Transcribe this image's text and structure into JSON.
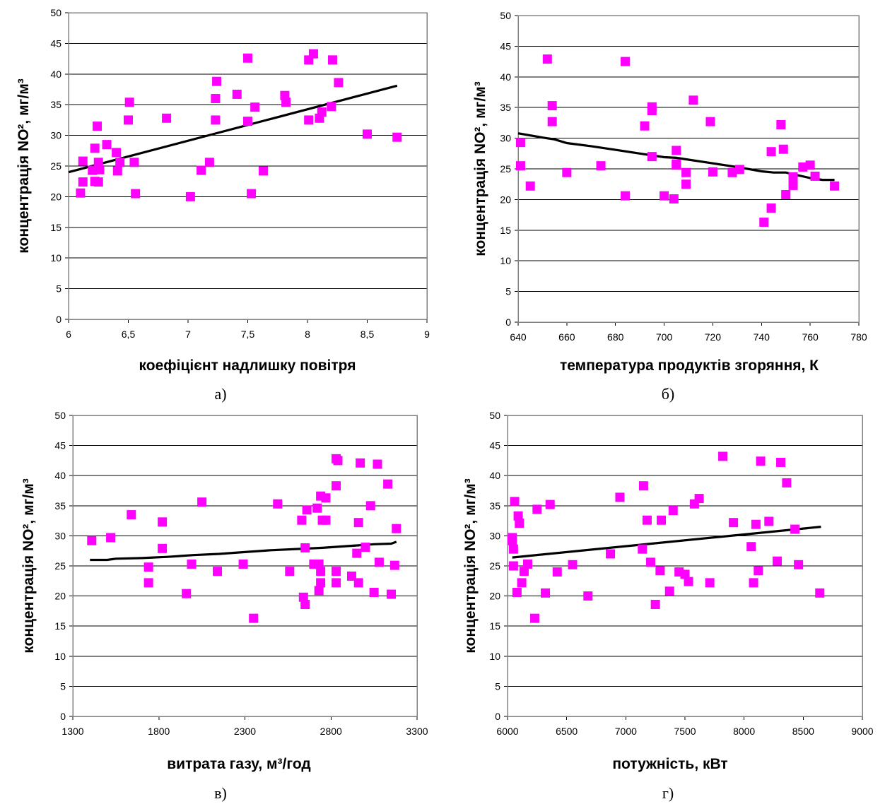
{
  "chart_data": [
    {
      "type": "scatter",
      "caption": "а)",
      "xlabel": "коефіцієнт надлишку повітря",
      "ylabel": "концентрація NO²,  мг/м³",
      "xlim": [
        6,
        9
      ],
      "ylim": [
        0,
        50
      ],
      "xticks": [
        "6",
        "6,5",
        "7",
        "7,5",
        "8",
        "8,5",
        "9"
      ],
      "yticks": [
        "0",
        "5",
        "10",
        "15",
        "20",
        "25",
        "30",
        "35",
        "40",
        "45",
        "50"
      ],
      "grid": "horizontal",
      "marker_color": "#ff00ff",
      "trend_color": "#000000",
      "points": [
        [
          6.1,
          20.6
        ],
        [
          6.12,
          25.8
        ],
        [
          6.12,
          22.4
        ],
        [
          6.2,
          24.3
        ],
        [
          6.22,
          22.5
        ],
        [
          6.22,
          27.9
        ],
        [
          6.24,
          31.5
        ],
        [
          6.25,
          25.6
        ],
        [
          6.25,
          22.4
        ],
        [
          6.26,
          24.4
        ],
        [
          6.32,
          28.5
        ],
        [
          6.4,
          27.2
        ],
        [
          6.41,
          24.2
        ],
        [
          6.43,
          25.6
        ],
        [
          6.5,
          32.5
        ],
        [
          6.51,
          35.4
        ],
        [
          6.55,
          25.6
        ],
        [
          6.56,
          20.5
        ],
        [
          6.82,
          32.8
        ],
        [
          7.02,
          20.0
        ],
        [
          7.11,
          24.3
        ],
        [
          7.18,
          25.6
        ],
        [
          7.23,
          36.0
        ],
        [
          7.23,
          32.5
        ],
        [
          7.24,
          38.8
        ],
        [
          7.41,
          36.7
        ],
        [
          7.5,
          42.6
        ],
        [
          7.5,
          32.3
        ],
        [
          7.53,
          20.5
        ],
        [
          7.56,
          34.6
        ],
        [
          7.63,
          24.2
        ],
        [
          7.81,
          36.5
        ],
        [
          7.82,
          35.4
        ],
        [
          8.01,
          32.5
        ],
        [
          8.01,
          42.3
        ],
        [
          8.05,
          43.3
        ],
        [
          8.1,
          32.8
        ],
        [
          8.12,
          33.8
        ],
        [
          8.2,
          34.7
        ],
        [
          8.21,
          42.3
        ],
        [
          8.26,
          38.6
        ],
        [
          8.5,
          30.2
        ],
        [
          8.75,
          29.7
        ]
      ],
      "trend": [
        [
          6,
          24.0
        ],
        [
          8.75,
          38.1
        ]
      ]
    },
    {
      "type": "scatter",
      "caption": "б)",
      "xlabel": "температура продуктів згоряння, К",
      "ylabel": "концентрація NO²,  мг/м³",
      "xlim": [
        640,
        780
      ],
      "ylim": [
        0,
        50
      ],
      "xticks": [
        "640",
        "660",
        "680",
        "700",
        "720",
        "740",
        "760",
        "780"
      ],
      "yticks": [
        "0",
        "5",
        "10",
        "15",
        "20",
        "25",
        "30",
        "35",
        "40",
        "45",
        "50"
      ],
      "grid": "horizontal",
      "marker_color": "#ff00ff",
      "trend_color": "#000000",
      "points": [
        [
          641,
          29.3
        ],
        [
          641,
          25.5
        ],
        [
          645,
          22.2
        ],
        [
          652,
          42.9
        ],
        [
          654,
          35.3
        ],
        [
          654,
          32.7
        ],
        [
          660,
          24.4
        ],
        [
          674,
          25.5
        ],
        [
          684,
          42.5
        ],
        [
          684,
          20.6
        ],
        [
          692,
          32.0
        ],
        [
          695,
          35.1
        ],
        [
          695,
          34.5
        ],
        [
          695,
          27.0
        ],
        [
          700,
          20.6
        ],
        [
          704,
          20.1
        ],
        [
          705,
          25.6
        ],
        [
          705,
          25.8
        ],
        [
          705,
          28.0
        ],
        [
          709,
          24.4
        ],
        [
          709,
          22.5
        ],
        [
          712,
          36.2
        ],
        [
          719,
          32.7
        ],
        [
          720,
          24.5
        ],
        [
          728,
          24.4
        ],
        [
          731,
          24.9
        ],
        [
          741,
          16.3
        ],
        [
          744,
          18.6
        ],
        [
          744,
          27.8
        ],
        [
          748,
          32.2
        ],
        [
          749,
          28.2
        ],
        [
          750,
          20.8
        ],
        [
          753,
          23.7
        ],
        [
          753,
          22.3
        ],
        [
          757,
          25.3
        ],
        [
          760,
          25.6
        ],
        [
          762,
          23.8
        ],
        [
          770,
          22.2
        ]
      ],
      "trend": [
        [
          640,
          30.8
        ],
        [
          650,
          30.1
        ],
        [
          655,
          29.8
        ],
        [
          660,
          29.2
        ],
        [
          670,
          28.7
        ],
        [
          680,
          28.1
        ],
        [
          690,
          27.5
        ],
        [
          700,
          26.9
        ],
        [
          705,
          26.8
        ],
        [
          710,
          26.5
        ],
        [
          720,
          25.9
        ],
        [
          730,
          25.3
        ],
        [
          740,
          24.6
        ],
        [
          745,
          24.4
        ],
        [
          750,
          24.4
        ],
        [
          760,
          23.5
        ],
        [
          765,
          23.2
        ],
        [
          770,
          23.2
        ]
      ]
    },
    {
      "type": "scatter",
      "caption": "в)",
      "xlabel": "витрата газу, м³/год",
      "ylabel": "концентрація NO²,  мг/м³",
      "xlim": [
        1300,
        3300
      ],
      "ylim": [
        0,
        50
      ],
      "xticks": [
        "1300",
        "1800",
        "2300",
        "2800",
        "3300"
      ],
      "yticks": [
        "0",
        "5",
        "10",
        "15",
        "20",
        "25",
        "30",
        "35",
        "40",
        "45",
        "50"
      ],
      "grid": "horizontal",
      "marker_color": "#ff00ff",
      "trend_color": "#000000",
      "points": [
        [
          1410,
          29.2
        ],
        [
          1520,
          29.7
        ],
        [
          1640,
          33.5
        ],
        [
          1740,
          24.8
        ],
        [
          1740,
          22.2
        ],
        [
          1820,
          32.3
        ],
        [
          1820,
          27.9
        ],
        [
          1960,
          20.4
        ],
        [
          1990,
          25.3
        ],
        [
          2050,
          35.6
        ],
        [
          2140,
          24.1
        ],
        [
          2290,
          25.3
        ],
        [
          2350,
          16.3
        ],
        [
          2490,
          35.3
        ],
        [
          2560,
          24.1
        ],
        [
          2630,
          32.6
        ],
        [
          2640,
          19.8
        ],
        [
          2650,
          18.6
        ],
        [
          2650,
          28.0
        ],
        [
          2660,
          34.3
        ],
        [
          2700,
          25.3
        ],
        [
          2720,
          34.6
        ],
        [
          2730,
          25.3
        ],
        [
          2730,
          20.9
        ],
        [
          2740,
          36.6
        ],
        [
          2740,
          24.1
        ],
        [
          2740,
          22.2
        ],
        [
          2750,
          32.6
        ],
        [
          2770,
          36.3
        ],
        [
          2770,
          32.6
        ],
        [
          2830,
          42.8
        ],
        [
          2830,
          38.3
        ],
        [
          2830,
          24.1
        ],
        [
          2830,
          22.2
        ],
        [
          2840,
          42.5
        ],
        [
          2920,
          23.3
        ],
        [
          2950,
          27.1
        ],
        [
          2960,
          22.2
        ],
        [
          2960,
          32.2
        ],
        [
          2970,
          42.1
        ],
        [
          3000,
          28.1
        ],
        [
          3030,
          35.0
        ],
        [
          3050,
          20.6
        ],
        [
          3070,
          41.9
        ],
        [
          3080,
          25.6
        ],
        [
          3130,
          38.6
        ],
        [
          3150,
          20.3
        ],
        [
          3170,
          25.1
        ],
        [
          3180,
          31.2
        ]
      ],
      "trend": [
        [
          1400,
          26.0
        ],
        [
          1500,
          26.0
        ],
        [
          1550,
          26.2
        ],
        [
          1700,
          26.3
        ],
        [
          1850,
          26.5
        ],
        [
          2000,
          26.8
        ],
        [
          2150,
          27.0
        ],
        [
          2300,
          27.3
        ],
        [
          2450,
          27.6
        ],
        [
          2600,
          27.8
        ],
        [
          2750,
          28.0
        ],
        [
          2900,
          28.3
        ],
        [
          3050,
          28.6
        ],
        [
          3150,
          28.7
        ],
        [
          3180,
          29.0
        ]
      ]
    },
    {
      "type": "scatter",
      "caption": "г)",
      "xlabel": "потужність, кВт",
      "ylabel": "концентрація NO²,  мг/м³",
      "xlim": [
        6000,
        9000
      ],
      "ylim": [
        0,
        50
      ],
      "xticks": [
        "6000",
        "6500",
        "7000",
        "7500",
        "8000",
        "8500",
        "9000"
      ],
      "yticks": [
        "0",
        "5",
        "10",
        "15",
        "20",
        "25",
        "30",
        "35",
        "40",
        "45",
        "50"
      ],
      "grid": "horizontal",
      "marker_color": "#ff00ff",
      "trend_color": "#000000",
      "points": [
        [
          6040,
          29.7
        ],
        [
          6040,
          29.2
        ],
        [
          6050,
          27.8
        ],
        [
          6050,
          25.0
        ],
        [
          6060,
          35.7
        ],
        [
          6080,
          20.6
        ],
        [
          6090,
          33.3
        ],
        [
          6100,
          32.1
        ],
        [
          6120,
          22.2
        ],
        [
          6140,
          24.1
        ],
        [
          6170,
          25.3
        ],
        [
          6230,
          16.3
        ],
        [
          6250,
          34.4
        ],
        [
          6320,
          20.5
        ],
        [
          6360,
          35.2
        ],
        [
          6420,
          24.0
        ],
        [
          6550,
          25.2
        ],
        [
          6680,
          20.0
        ],
        [
          6870,
          27.0
        ],
        [
          6950,
          36.4
        ],
        [
          7140,
          27.8
        ],
        [
          7150,
          38.3
        ],
        [
          7180,
          32.6
        ],
        [
          7210,
          25.6
        ],
        [
          7250,
          18.6
        ],
        [
          7290,
          24.2
        ],
        [
          7300,
          32.6
        ],
        [
          7370,
          20.8
        ],
        [
          7400,
          34.2
        ],
        [
          7450,
          24.0
        ],
        [
          7500,
          23.6
        ],
        [
          7530,
          22.4
        ],
        [
          7580,
          35.3
        ],
        [
          7620,
          36.2
        ],
        [
          7710,
          22.2
        ],
        [
          7820,
          43.2
        ],
        [
          7910,
          32.2
        ],
        [
          8060,
          28.2
        ],
        [
          8080,
          22.2
        ],
        [
          8100,
          31.9
        ],
        [
          8120,
          24.2
        ],
        [
          8140,
          42.4
        ],
        [
          8210,
          32.4
        ],
        [
          8280,
          25.8
        ],
        [
          8310,
          42.2
        ],
        [
          8360,
          38.8
        ],
        [
          8430,
          31.1
        ],
        [
          8460,
          25.2
        ],
        [
          8640,
          20.5
        ]
      ],
      "trend": [
        [
          6040,
          26.4
        ],
        [
          8650,
          31.5
        ]
      ]
    }
  ]
}
